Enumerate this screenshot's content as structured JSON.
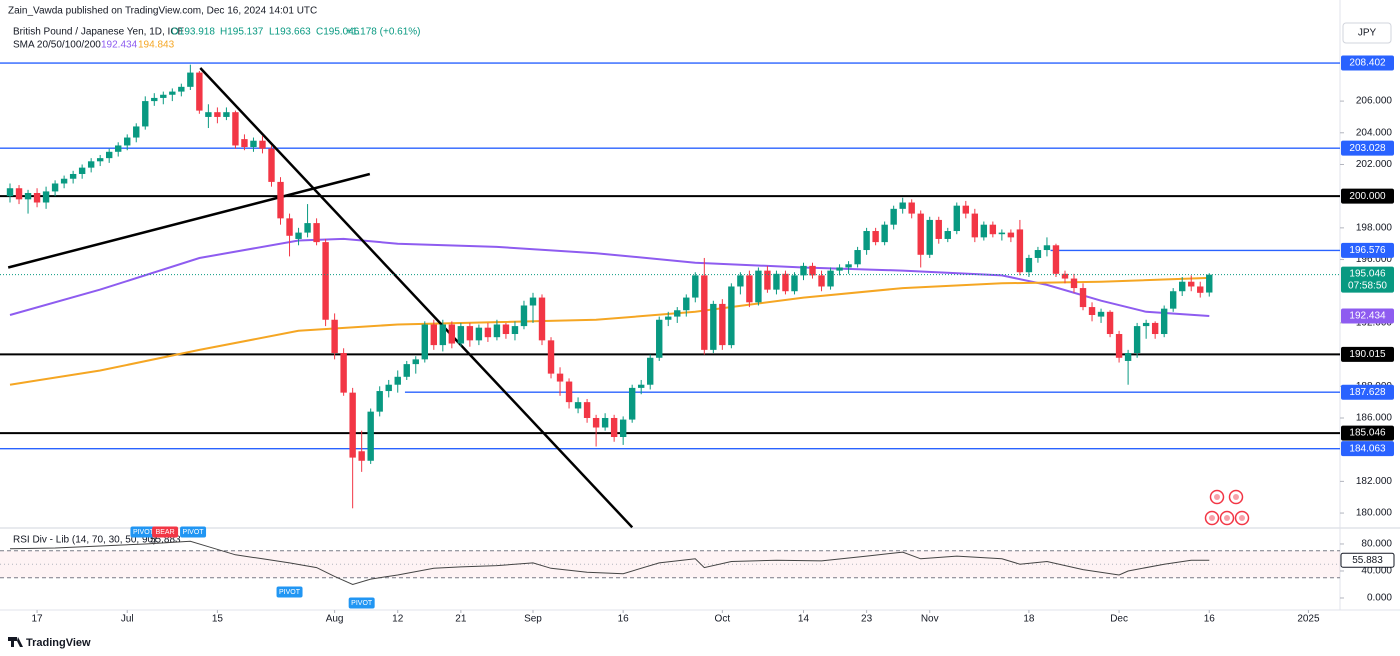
{
  "header": {
    "publisher": "Zain_Vawda published on TradingView.com, Dec 16, 2024 14:01 UTC",
    "symbol": "British Pound / Japanese Yen, 1D, ICE",
    "ohlc": [
      "O193.918",
      "H195.137",
      "L193.663",
      "C195.046"
    ],
    "change": "+1.178 (+0.61%)",
    "sma": "SMA 20/50/100/200",
    "sma_values": [
      "192.434",
      "194.843"
    ],
    "currency": "JPY",
    "footer": "TradingView"
  },
  "chart_data": {
    "type": "candlestick",
    "up_color": "#089981",
    "down_color": "#f23645",
    "grid": false,
    "open": [
      200.0,
      200.5,
      199.8,
      200.2,
      199.6,
      200.3,
      200.8,
      201.1,
      201.4,
      201.8,
      202.2,
      202.4,
      202.8,
      203.2,
      203.7,
      204.4,
      206.0,
      206.2,
      206.4,
      206.6,
      206.9,
      207.8,
      205.0,
      205.3,
      205.0,
      205.3,
      203.6,
      203.1,
      203.5,
      203.0,
      200.9,
      198.6,
      197.3,
      197.7,
      198.3,
      197.1,
      192.2,
      190.1,
      187.6,
      183.9,
      183.3,
      186.4,
      187.7,
      188.1,
      188.6,
      189.4,
      189.7,
      191.9,
      190.6,
      191.9,
      190.7,
      191.8,
      190.9,
      191.7,
      191.1,
      191.9,
      191.3,
      191.8,
      193.1,
      193.6,
      190.9,
      188.8,
      188.3,
      186.6,
      187.0,
      186.0,
      185.4,
      186.0,
      184.8,
      185.9,
      187.9,
      188.1,
      189.8,
      192.2,
      192.4,
      192.8,
      193.6,
      195.0,
      190.3,
      193.2,
      190.6,
      194.3,
      195.0,
      193.3,
      195.3,
      194.1,
      195.1,
      194.0,
      195.0,
      195.6,
      195.0,
      194.3,
      195.3,
      195.5,
      195.7,
      196.6,
      197.8,
      197.1,
      198.2,
      199.2,
      199.6,
      198.9,
      196.3,
      198.5,
      197.3,
      197.8,
      199.4,
      198.9,
      197.4,
      198.2,
      197.6,
      197.7,
      197.9,
      195.2,
      196.1,
      196.6,
      196.9,
      195.1,
      194.8,
      194.2,
      193.0,
      192.4,
      192.7,
      191.3,
      189.6,
      190.1,
      191.8,
      192.0,
      191.3,
      192.9,
      194.0,
      194.6,
      194.3,
      193.918
    ],
    "high": [
      200.8,
      200.7,
      200.4,
      200.5,
      200.6,
      201.0,
      201.3,
      201.6,
      202.0,
      202.4,
      202.6,
      203.0,
      203.4,
      203.9,
      204.6,
      206.3,
      206.5,
      206.6,
      206.8,
      207.1,
      208.3,
      207.9,
      205.8,
      205.6,
      205.6,
      205.4,
      203.9,
      203.7,
      203.8,
      203.2,
      201.2,
      198.9,
      198.0,
      199.5,
      198.6,
      197.3,
      192.6,
      190.4,
      187.9,
      185.2,
      186.6,
      188.0,
      188.4,
      189.0,
      189.6,
      189.9,
      192.1,
      192.2,
      192.2,
      192.1,
      192.0,
      192.0,
      191.9,
      192.0,
      192.2,
      192.0,
      192.1,
      193.4,
      193.9,
      193.8,
      191.1,
      189.2,
      188.5,
      187.3,
      187.2,
      186.2,
      186.3,
      186.2,
      186.1,
      188.1,
      188.4,
      190.0,
      192.4,
      192.7,
      193.0,
      193.8,
      195.2,
      196.1,
      193.4,
      193.5,
      194.5,
      195.2,
      195.3,
      195.5,
      195.6,
      195.3,
      195.3,
      195.2,
      195.8,
      195.8,
      195.3,
      195.5,
      195.7,
      195.9,
      196.8,
      198.0,
      198.0,
      198.4,
      199.4,
      199.9,
      199.8,
      199.1,
      198.7,
      198.7,
      198.0,
      199.6,
      199.7,
      199.2,
      198.4,
      198.4,
      197.9,
      197.9,
      198.5,
      196.3,
      196.8,
      197.4,
      197.0,
      195.3,
      195.1,
      194.5,
      193.3,
      192.9,
      192.8,
      191.5,
      190.3,
      192.0,
      192.2,
      192.1,
      193.1,
      194.2,
      194.9,
      195.0,
      194.6,
      195.137
    ],
    "low": [
      199.6,
      199.5,
      198.9,
      199.3,
      199.2,
      200.0,
      200.5,
      200.8,
      201.1,
      201.5,
      201.9,
      202.1,
      202.5,
      202.9,
      203.4,
      204.2,
      205.7,
      205.8,
      206.0,
      206.3,
      206.7,
      205.2,
      204.3,
      204.6,
      204.8,
      203.0,
      202.9,
      202.8,
      202.7,
      200.6,
      198.2,
      196.2,
      196.9,
      197.4,
      196.9,
      191.8,
      189.7,
      187.4,
      180.3,
      182.6,
      183.1,
      186.1,
      187.3,
      187.6,
      188.4,
      188.8,
      189.5,
      190.3,
      190.2,
      190.4,
      190.5,
      190.5,
      190.6,
      190.8,
      190.9,
      191.0,
      190.9,
      191.6,
      192.0,
      190.6,
      188.5,
      187.4,
      186.6,
      186.3,
      185.7,
      184.2,
      185.2,
      184.5,
      184.3,
      185.7,
      187.5,
      187.8,
      189.6,
      191.8,
      192.0,
      192.4,
      193.3,
      190.0,
      190.1,
      190.3,
      190.4,
      193.8,
      193.0,
      193.1,
      193.9,
      193.8,
      193.8,
      193.8,
      194.7,
      194.8,
      194.0,
      194.1,
      195.0,
      195.1,
      195.5,
      196.3,
      196.9,
      196.9,
      197.9,
      198.9,
      198.6,
      195.5,
      196.1,
      197.0,
      197.1,
      197.6,
      198.6,
      197.1,
      197.2,
      197.4,
      197.2,
      197.1,
      195.0,
      194.9,
      195.8,
      196.2,
      194.9,
      194.5,
      193.9,
      192.8,
      192.1,
      192.0,
      191.1,
      189.5,
      188.1,
      189.8,
      191.0,
      191.0,
      191.1,
      192.7,
      193.7,
      194.0,
      193.6,
      193.663
    ],
    "close": [
      200.5,
      199.8,
      200.2,
      199.6,
      200.3,
      200.8,
      201.1,
      201.4,
      201.8,
      202.2,
      202.4,
      202.8,
      203.2,
      203.7,
      204.4,
      206.0,
      206.2,
      206.4,
      206.6,
      206.9,
      207.8,
      205.4,
      205.3,
      205.0,
      205.3,
      203.2,
      203.1,
      203.5,
      203.0,
      200.9,
      198.6,
      197.5,
      197.7,
      198.3,
      197.1,
      192.2,
      190.1,
      187.6,
      183.5,
      183.3,
      186.4,
      187.7,
      188.1,
      188.6,
      189.4,
      189.7,
      191.9,
      190.6,
      191.9,
      190.7,
      191.8,
      190.9,
      191.7,
      191.1,
      191.9,
      191.3,
      191.8,
      193.1,
      193.6,
      190.9,
      188.8,
      188.3,
      187.0,
      187.0,
      186.0,
      185.4,
      186.0,
      184.8,
      185.9,
      187.9,
      188.1,
      189.8,
      192.2,
      192.4,
      192.8,
      193.6,
      195.0,
      190.3,
      193.2,
      190.6,
      194.3,
      195.0,
      193.3,
      195.3,
      194.1,
      195.1,
      194.0,
      195.0,
      195.6,
      195.0,
      194.3,
      195.3,
      195.5,
      195.7,
      196.6,
      197.8,
      197.1,
      198.2,
      199.2,
      199.6,
      198.9,
      196.3,
      198.5,
      197.3,
      197.8,
      199.4,
      198.9,
      197.4,
      198.2,
      197.6,
      197.7,
      197.4,
      195.2,
      196.1,
      196.6,
      196.9,
      195.1,
      194.8,
      194.2,
      193.0,
      192.5,
      192.7,
      191.3,
      189.8,
      190.1,
      191.8,
      192.0,
      191.3,
      192.9,
      194.0,
      194.6,
      194.3,
      193.9,
      195.046
    ],
    "close_label": "195.046",
    "countdown": "07:58:50",
    "xlim": [
      -1.11,
      147.5
    ],
    "xticks": [
      {
        "value": 3,
        "label": "17"
      },
      {
        "value": 13,
        "label": "Jul"
      },
      {
        "value": 23,
        "label": "15"
      },
      {
        "value": 36,
        "label": "Aug"
      },
      {
        "value": 43,
        "label": "12"
      },
      {
        "value": 50,
        "label": "21"
      },
      {
        "value": 58,
        "label": "Sep"
      },
      {
        "value": 68,
        "label": "16"
      },
      {
        "value": 79,
        "label": "Oct"
      },
      {
        "value": 88,
        "label": "14"
      },
      {
        "value": 95,
        "label": "23"
      },
      {
        "value": 102,
        "label": "Nov"
      },
      {
        "value": 113,
        "label": "18"
      },
      {
        "value": 123,
        "label": "Dec"
      },
      {
        "value": 133,
        "label": "16"
      },
      {
        "value": 144,
        "label": "2025"
      }
    ],
    "ylim": [
      179.12,
      208.72
    ],
    "yticks": [
      {
        "value": 180,
        "label": "180.000"
      },
      {
        "value": 182,
        "label": "182.000"
      },
      {
        "value": 186,
        "label": "186.000"
      },
      {
        "value": 188,
        "label": "188.000"
      },
      {
        "value": 192,
        "label": "192.000"
      },
      {
        "value": 196,
        "label": "196.000"
      },
      {
        "value": 198,
        "label": "198.000"
      },
      {
        "value": 202,
        "label": "202.000"
      },
      {
        "value": 204,
        "label": "204.000"
      },
      {
        "value": 206,
        "label": "206.000"
      }
    ],
    "overlays": [
      {
        "color": "#8e5cf0",
        "x": [
          0,
          10,
          21,
          32,
          37,
          43,
          54,
          65,
          76,
          88,
          99,
          110,
          115,
          121,
          126,
          133
        ],
        "values": [
          192.5,
          194.1,
          196.1,
          197.2,
          197.3,
          197.0,
          196.8,
          196.4,
          195.8,
          195.5,
          195.3,
          195.0,
          194.4,
          193.4,
          192.7,
          192.434
        ],
        "last_label": "192.434"
      },
      {
        "color": "#f5a623",
        "x": [
          0,
          10,
          21,
          32,
          43,
          54,
          65,
          76,
          88,
          99,
          110,
          121,
          133
        ],
        "values": [
          188.1,
          189.0,
          190.3,
          191.5,
          191.9,
          192.05,
          192.2,
          192.7,
          193.6,
          194.2,
          194.5,
          194.6,
          194.843
        ],
        "last_label": "194.843"
      }
    ],
    "levels": [
      {
        "value": 208.402,
        "label": "208.402",
        "color": "#2962ff",
        "from": null
      },
      {
        "value": 203.028,
        "label": "203.028",
        "color": "#2962ff",
        "from": null
      },
      {
        "value": 200.0,
        "label": "200.000",
        "color": "#000000",
        "from": null
      },
      {
        "value": 196.576,
        "label": "196.576",
        "color": "#2962ff",
        "from": 115.4
      },
      {
        "value": 190.015,
        "label": "190.015",
        "color": "#000000",
        "from": null
      },
      {
        "value": 187.628,
        "label": "187.628",
        "color": "#2962ff",
        "from": 43.8
      },
      {
        "value": 185.046,
        "label": "185.046",
        "color": "#000000",
        "from": null
      },
      {
        "value": 184.063,
        "label": "184.063",
        "color": "#2962ff",
        "from": null
      }
    ],
    "trendlines": [
      {
        "x": [
          21.1,
          69
        ],
        "values": [
          208.09,
          179.1
        ]
      },
      {
        "x": [
          -0.2,
          39.9
        ],
        "values": [
          195.5,
          201.4
        ]
      }
    ],
    "rsi": {
      "title": "RSI Div - Lib (14, 70, 30, 50, 90)",
      "value_label": "55.883",
      "color": "#444444",
      "x": [
        0,
        5,
        10,
        15,
        20,
        22,
        25,
        28,
        31,
        34,
        36,
        38,
        40,
        43,
        47,
        50,
        54,
        58,
        60,
        64,
        68,
        72,
        76,
        77,
        80,
        85,
        90,
        95,
        99,
        101,
        105,
        110,
        112,
        115,
        119,
        123,
        124,
        128,
        131,
        133
      ],
      "values": [
        73,
        74,
        77,
        80,
        84,
        76,
        64,
        58,
        52,
        45,
        32,
        20,
        28,
        34,
        44,
        46,
        48,
        52,
        44,
        38,
        36,
        52,
        58,
        45,
        54,
        56,
        55,
        62,
        68,
        58,
        62,
        58,
        50,
        54,
        42,
        34,
        40,
        50,
        56,
        55.883
      ],
      "ylim": [
        -17.8,
        100.7
      ],
      "band": [
        30,
        70
      ],
      "mid": 50,
      "yticks": [
        {
          "value": 80,
          "label": "80.000"
        },
        {
          "value": 40,
          "label": "40.000"
        },
        {
          "value": 0,
          "label": "0.000"
        }
      ],
      "annotations": [
        {
          "text": "PIVOT",
          "x": 14.8,
          "color": "#2196f3",
          "side": "above"
        },
        {
          "text": "BEAR",
          "x": 17.2,
          "color": "#f23645",
          "side": "above"
        },
        {
          "text": "PIVOT",
          "x": 20.3,
          "color": "#2196f3",
          "side": "above"
        },
        {
          "text": "PIVOT",
          "x": 31,
          "color": "#2196f3",
          "side": "below"
        },
        {
          "text": "PIVOT",
          "x": 39,
          "color": "#2196f3",
          "side": "below"
        }
      ]
    }
  }
}
